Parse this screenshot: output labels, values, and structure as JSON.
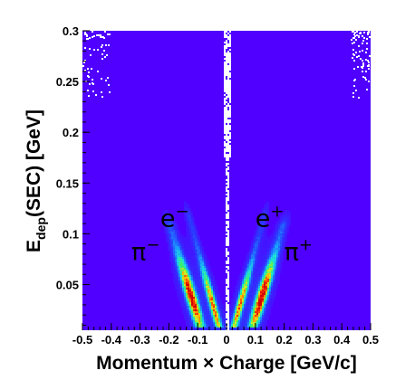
{
  "chart_data": {
    "type": "heatmap",
    "xlabel": "Momentum × Charge [GeV/c]",
    "ylabel": {
      "main": "E",
      "sub": "dep",
      "rest": "(SEC) [GeV]"
    },
    "xlim": [
      -0.5,
      0.5
    ],
    "ylim": [
      0.005,
      0.3
    ],
    "x_ticks": [
      -0.5,
      -0.4,
      -0.3,
      -0.2,
      -0.1,
      0,
      0.1,
      0.2,
      0.3,
      0.4,
      0.5
    ],
    "x_tick_labels": [
      "-0.5",
      "-0.4",
      "-0.3",
      "-0.2",
      "-0.1",
      "0",
      "0.1",
      "0.2",
      "0.3",
      "0.4",
      "0.5"
    ],
    "y_ticks": [
      0.05,
      0.1,
      0.15,
      0.2,
      0.25,
      0.3
    ],
    "y_tick_labels": [
      "0.05",
      "0.1",
      "0.15",
      "0.2",
      "0.25",
      "0.3"
    ],
    "background_color": "#5000ff",
    "annotations": [
      {
        "id": "e-minus",
        "base": "e",
        "sup": "−",
        "x": -0.23,
        "y": 0.107
      },
      {
        "id": "e-plus",
        "base": "e",
        "sup": "+",
        "x": 0.1,
        "y": 0.107
      },
      {
        "id": "pi-minus",
        "base": "π",
        "sup": "−",
        "x": -0.33,
        "y": 0.074
      },
      {
        "id": "pi-plus",
        "base": "π",
        "sup": "+",
        "x": 0.2,
        "y": 0.074
      }
    ],
    "bands": [
      {
        "name": "pi-minus-band",
        "sign": -1,
        "p0": 0.095,
        "e0": 0.012,
        "e1": 0.11,
        "peak_e": 0.038,
        "slope": 1.05,
        "width": 0.016,
        "amp": 1.0
      },
      {
        "name": "e-minus-band",
        "sign": -1,
        "p0": 0.03,
        "e0": 0.012,
        "e1": 0.12,
        "peak_e": 0.03,
        "slope": 0.95,
        "width": 0.011,
        "amp": 0.75
      },
      {
        "name": "pi-plus-band",
        "sign": 1,
        "p0": 0.095,
        "e0": 0.012,
        "e1": 0.11,
        "peak_e": 0.038,
        "slope": 1.05,
        "width": 0.016,
        "amp": 1.0
      },
      {
        "name": "e-plus-band",
        "sign": 1,
        "p0": 0.03,
        "e0": 0.012,
        "e1": 0.12,
        "peak_e": 0.03,
        "slope": 0.95,
        "width": 0.011,
        "amp": 0.75
      }
    ],
    "colorscale": [
      "#5000ff",
      "#2a3cff",
      "#1aa0ff",
      "#1ee6d2",
      "#3cf064",
      "#c8f028",
      "#ffb400",
      "#ff3c00",
      "#d20000"
    ]
  }
}
